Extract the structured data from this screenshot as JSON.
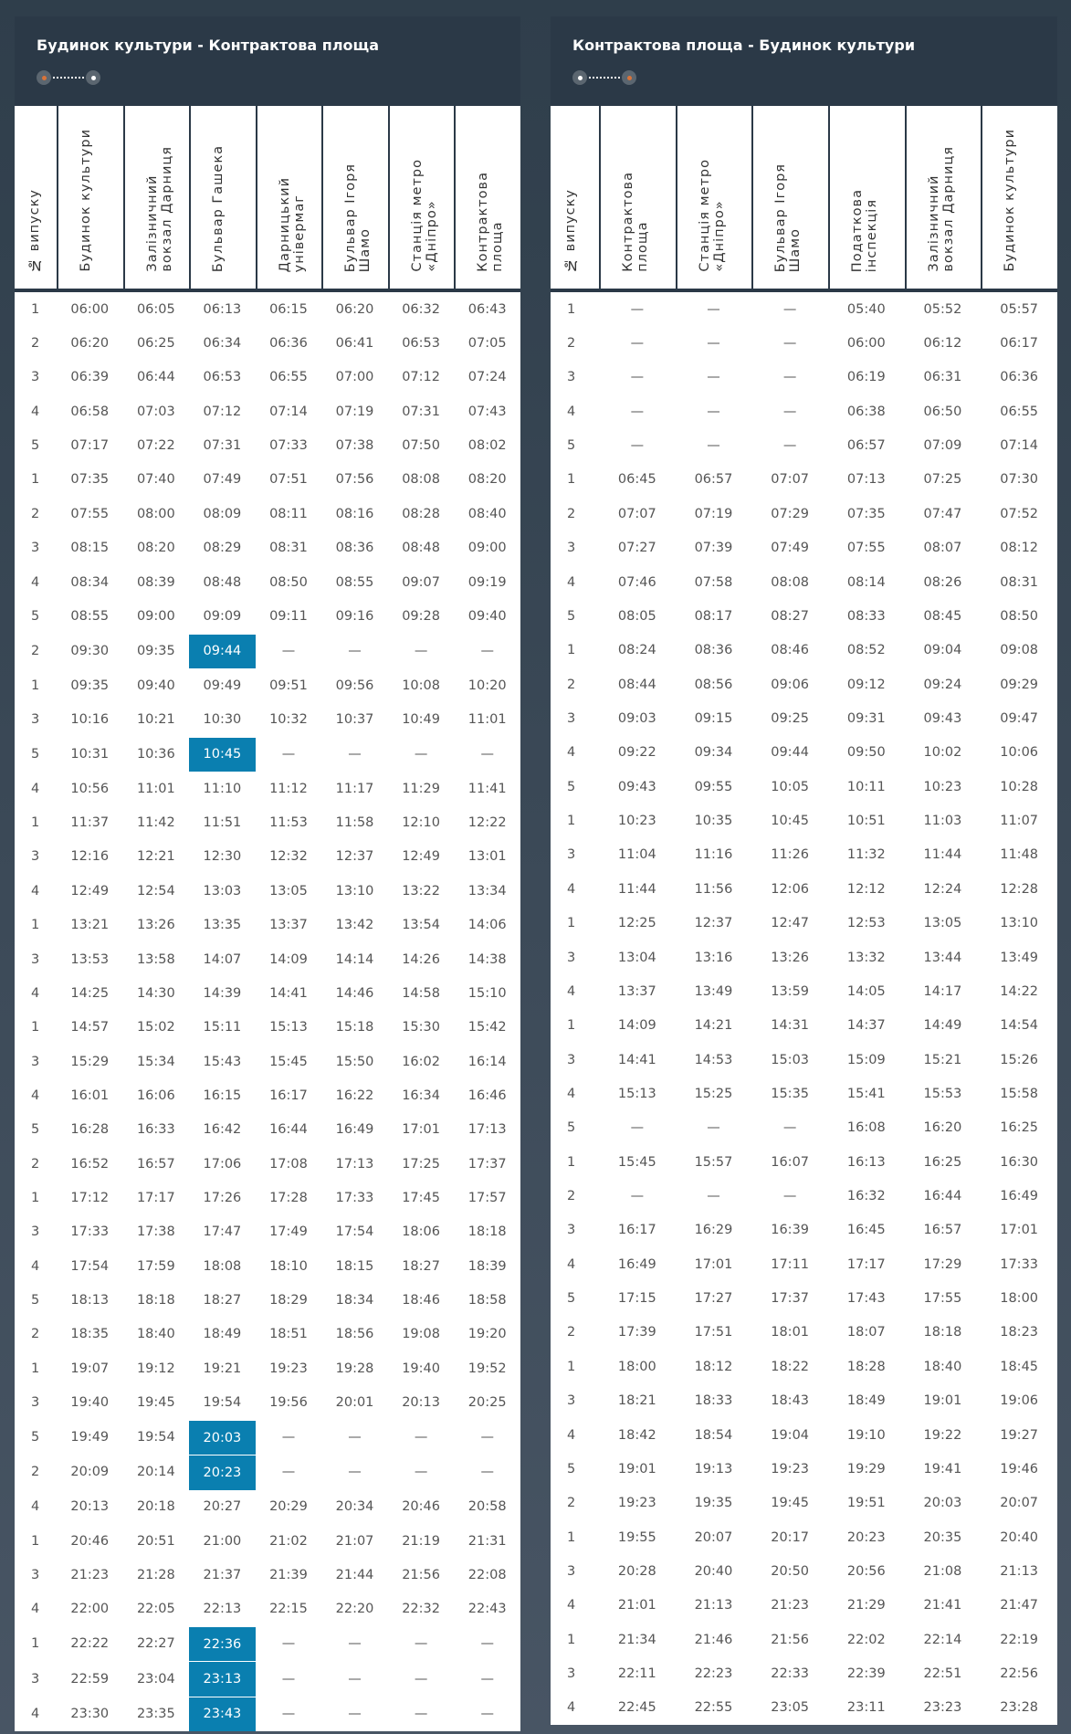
{
  "colors": {
    "highlight": "#0a7fb0",
    "panel": "#2b3947",
    "start_dot": "#d9743a"
  },
  "tables": [
    {
      "title": "Будинок культури - Контрактова площа",
      "headers": [
        "№ випуску",
        "Будинок культури",
        "Залізничний\nвокзал Дарниця",
        "Бульвар Гашека",
        "Дарницький\nунівермаг",
        "Бульвар Ігоря\nШамо",
        "Станція метро\n«Дніпро»",
        "Контрактова\nплоща"
      ],
      "rows": [
        [
          "1",
          "06:00",
          "06:05",
          "06:13",
          "06:15",
          "06:20",
          "06:32",
          "06:43"
        ],
        [
          "2",
          "06:20",
          "06:25",
          "06:34",
          "06:36",
          "06:41",
          "06:53",
          "07:05"
        ],
        [
          "3",
          "06:39",
          "06:44",
          "06:53",
          "06:55",
          "07:00",
          "07:12",
          "07:24"
        ],
        [
          "4",
          "06:58",
          "07:03",
          "07:12",
          "07:14",
          "07:19",
          "07:31",
          "07:43"
        ],
        [
          "5",
          "07:17",
          "07:22",
          "07:31",
          "07:33",
          "07:38",
          "07:50",
          "08:02"
        ],
        [
          "1",
          "07:35",
          "07:40",
          "07:49",
          "07:51",
          "07:56",
          "08:08",
          "08:20"
        ],
        [
          "2",
          "07:55",
          "08:00",
          "08:09",
          "08:11",
          "08:16",
          "08:28",
          "08:40"
        ],
        [
          "3",
          "08:15",
          "08:20",
          "08:29",
          "08:31",
          "08:36",
          "08:48",
          "09:00"
        ],
        [
          "4",
          "08:34",
          "08:39",
          "08:48",
          "08:50",
          "08:55",
          "09:07",
          "09:19"
        ],
        [
          "5",
          "08:55",
          "09:00",
          "09:09",
          "09:11",
          "09:16",
          "09:28",
          "09:40"
        ],
        [
          "2",
          "09:30",
          "09:35",
          "09:44",
          "—",
          "—",
          "—",
          "—"
        ],
        [
          "1",
          "09:35",
          "09:40",
          "09:49",
          "09:51",
          "09:56",
          "10:08",
          "10:20"
        ],
        [
          "3",
          "10:16",
          "10:21",
          "10:30",
          "10:32",
          "10:37",
          "10:49",
          "11:01"
        ],
        [
          "5",
          "10:31",
          "10:36",
          "10:45",
          "—",
          "—",
          "—",
          "—"
        ],
        [
          "4",
          "10:56",
          "11:01",
          "11:10",
          "11:12",
          "11:17",
          "11:29",
          "11:41"
        ],
        [
          "1",
          "11:37",
          "11:42",
          "11:51",
          "11:53",
          "11:58",
          "12:10",
          "12:22"
        ],
        [
          "3",
          "12:16",
          "12:21",
          "12:30",
          "12:32",
          "12:37",
          "12:49",
          "13:01"
        ],
        [
          "4",
          "12:49",
          "12:54",
          "13:03",
          "13:05",
          "13:10",
          "13:22",
          "13:34"
        ],
        [
          "1",
          "13:21",
          "13:26",
          "13:35",
          "13:37",
          "13:42",
          "13:54",
          "14:06"
        ],
        [
          "3",
          "13:53",
          "13:58",
          "14:07",
          "14:09",
          "14:14",
          "14:26",
          "14:38"
        ],
        [
          "4",
          "14:25",
          "14:30",
          "14:39",
          "14:41",
          "14:46",
          "14:58",
          "15:10"
        ],
        [
          "1",
          "14:57",
          "15:02",
          "15:11",
          "15:13",
          "15:18",
          "15:30",
          "15:42"
        ],
        [
          "3",
          "15:29",
          "15:34",
          "15:43",
          "15:45",
          "15:50",
          "16:02",
          "16:14"
        ],
        [
          "4",
          "16:01",
          "16:06",
          "16:15",
          "16:17",
          "16:22",
          "16:34",
          "16:46"
        ],
        [
          "5",
          "16:28",
          "16:33",
          "16:42",
          "16:44",
          "16:49",
          "17:01",
          "17:13"
        ],
        [
          "2",
          "16:52",
          "16:57",
          "17:06",
          "17:08",
          "17:13",
          "17:25",
          "17:37"
        ],
        [
          "1",
          "17:12",
          "17:17",
          "17:26",
          "17:28",
          "17:33",
          "17:45",
          "17:57"
        ],
        [
          "3",
          "17:33",
          "17:38",
          "17:47",
          "17:49",
          "17:54",
          "18:06",
          "18:18"
        ],
        [
          "4",
          "17:54",
          "17:59",
          "18:08",
          "18:10",
          "18:15",
          "18:27",
          "18:39"
        ],
        [
          "5",
          "18:13",
          "18:18",
          "18:27",
          "18:29",
          "18:34",
          "18:46",
          "18:58"
        ],
        [
          "2",
          "18:35",
          "18:40",
          "18:49",
          "18:51",
          "18:56",
          "19:08",
          "19:20"
        ],
        [
          "1",
          "19:07",
          "19:12",
          "19:21",
          "19:23",
          "19:28",
          "19:40",
          "19:52"
        ],
        [
          "3",
          "19:40",
          "19:45",
          "19:54",
          "19:56",
          "20:01",
          "20:13",
          "20:25"
        ],
        [
          "5",
          "19:49",
          "19:54",
          "20:03",
          "—",
          "—",
          "—",
          "—"
        ],
        [
          "2",
          "20:09",
          "20:14",
          "20:23",
          "—",
          "—",
          "—",
          "—"
        ],
        [
          "4",
          "20:13",
          "20:18",
          "20:27",
          "20:29",
          "20:34",
          "20:46",
          "20:58"
        ],
        [
          "1",
          "20:46",
          "20:51",
          "21:00",
          "21:02",
          "21:07",
          "21:19",
          "21:31"
        ],
        [
          "3",
          "21:23",
          "21:28",
          "21:37",
          "21:39",
          "21:44",
          "21:56",
          "22:08"
        ],
        [
          "4",
          "22:00",
          "22:05",
          "22:13",
          "22:15",
          "22:20",
          "22:32",
          "22:43"
        ],
        [
          "1",
          "22:22",
          "22:27",
          "22:36",
          "—",
          "—",
          "—",
          "—"
        ],
        [
          "3",
          "22:59",
          "23:04",
          "23:13",
          "—",
          "—",
          "—",
          "—"
        ],
        [
          "4",
          "23:30",
          "23:35",
          "23:43",
          "—",
          "—",
          "—",
          "—"
        ]
      ],
      "highlighted": [
        [
          10,
          3
        ],
        [
          13,
          3
        ],
        [
          33,
          3
        ],
        [
          34,
          3
        ],
        [
          39,
          3
        ],
        [
          40,
          3
        ],
        [
          41,
          3
        ]
      ]
    },
    {
      "title": "Контрактова площа - Будинок культури",
      "headers": [
        "№ випуску",
        "Контрактова\nплоща",
        "Станція метро\n«Дніпро»",
        "Бульвар Ігоря\nШамо",
        "Податкова\nінспекція",
        "Залізничний\nвокзал Дарниця",
        "Будинок культури"
      ],
      "rows": [
        [
          "1",
          "—",
          "—",
          "—",
          "05:40",
          "05:52",
          "05:57"
        ],
        [
          "2",
          "—",
          "—",
          "—",
          "06:00",
          "06:12",
          "06:17"
        ],
        [
          "3",
          "—",
          "—",
          "—",
          "06:19",
          "06:31",
          "06:36"
        ],
        [
          "4",
          "—",
          "—",
          "—",
          "06:38",
          "06:50",
          "06:55"
        ],
        [
          "5",
          "—",
          "—",
          "—",
          "06:57",
          "07:09",
          "07:14"
        ],
        [
          "1",
          "06:45",
          "06:57",
          "07:07",
          "07:13",
          "07:25",
          "07:30"
        ],
        [
          "2",
          "07:07",
          "07:19",
          "07:29",
          "07:35",
          "07:47",
          "07:52"
        ],
        [
          "3",
          "07:27",
          "07:39",
          "07:49",
          "07:55",
          "08:07",
          "08:12"
        ],
        [
          "4",
          "07:46",
          "07:58",
          "08:08",
          "08:14",
          "08:26",
          "08:31"
        ],
        [
          "5",
          "08:05",
          "08:17",
          "08:27",
          "08:33",
          "08:45",
          "08:50"
        ],
        [
          "1",
          "08:24",
          "08:36",
          "08:46",
          "08:52",
          "09:04",
          "09:08"
        ],
        [
          "2",
          "08:44",
          "08:56",
          "09:06",
          "09:12",
          "09:24",
          "09:29"
        ],
        [
          "3",
          "09:03",
          "09:15",
          "09:25",
          "09:31",
          "09:43",
          "09:47"
        ],
        [
          "4",
          "09:22",
          "09:34",
          "09:44",
          "09:50",
          "10:02",
          "10:06"
        ],
        [
          "5",
          "09:43",
          "09:55",
          "10:05",
          "10:11",
          "10:23",
          "10:28"
        ],
        [
          "1",
          "10:23",
          "10:35",
          "10:45",
          "10:51",
          "11:03",
          "11:07"
        ],
        [
          "3",
          "11:04",
          "11:16",
          "11:26",
          "11:32",
          "11:44",
          "11:48"
        ],
        [
          "4",
          "11:44",
          "11:56",
          "12:06",
          "12:12",
          "12:24",
          "12:28"
        ],
        [
          "1",
          "12:25",
          "12:37",
          "12:47",
          "12:53",
          "13:05",
          "13:10"
        ],
        [
          "3",
          "13:04",
          "13:16",
          "13:26",
          "13:32",
          "13:44",
          "13:49"
        ],
        [
          "4",
          "13:37",
          "13:49",
          "13:59",
          "14:05",
          "14:17",
          "14:22"
        ],
        [
          "1",
          "14:09",
          "14:21",
          "14:31",
          "14:37",
          "14:49",
          "14:54"
        ],
        [
          "3",
          "14:41",
          "14:53",
          "15:03",
          "15:09",
          "15:21",
          "15:26"
        ],
        [
          "4",
          "15:13",
          "15:25",
          "15:35",
          "15:41",
          "15:53",
          "15:58"
        ],
        [
          "5",
          "—",
          "—",
          "—",
          "16:08",
          "16:20",
          "16:25"
        ],
        [
          "1",
          "15:45",
          "15:57",
          "16:07",
          "16:13",
          "16:25",
          "16:30"
        ],
        [
          "2",
          "—",
          "—",
          "—",
          "16:32",
          "16:44",
          "16:49"
        ],
        [
          "3",
          "16:17",
          "16:29",
          "16:39",
          "16:45",
          "16:57",
          "17:01"
        ],
        [
          "4",
          "16:49",
          "17:01",
          "17:11",
          "17:17",
          "17:29",
          "17:33"
        ],
        [
          "5",
          "17:15",
          "17:27",
          "17:37",
          "17:43",
          "17:55",
          "18:00"
        ],
        [
          "2",
          "17:39",
          "17:51",
          "18:01",
          "18:07",
          "18:18",
          "18:23"
        ],
        [
          "1",
          "18:00",
          "18:12",
          "18:22",
          "18:28",
          "18:40",
          "18:45"
        ],
        [
          "3",
          "18:21",
          "18:33",
          "18:43",
          "18:49",
          "19:01",
          "19:06"
        ],
        [
          "4",
          "18:42",
          "18:54",
          "19:04",
          "19:10",
          "19:22",
          "19:27"
        ],
        [
          "5",
          "19:01",
          "19:13",
          "19:23",
          "19:29",
          "19:41",
          "19:46"
        ],
        [
          "2",
          "19:23",
          "19:35",
          "19:45",
          "19:51",
          "20:03",
          "20:07"
        ],
        [
          "1",
          "19:55",
          "20:07",
          "20:17",
          "20:23",
          "20:35",
          "20:40"
        ],
        [
          "3",
          "20:28",
          "20:40",
          "20:50",
          "20:56",
          "21:08",
          "21:13"
        ],
        [
          "4",
          "21:01",
          "21:13",
          "21:23",
          "21:29",
          "21:41",
          "21:47"
        ],
        [
          "1",
          "21:34",
          "21:46",
          "21:56",
          "22:02",
          "22:14",
          "22:19"
        ],
        [
          "3",
          "22:11",
          "22:23",
          "22:33",
          "22:39",
          "22:51",
          "22:56"
        ],
        [
          "4",
          "22:45",
          "22:55",
          "23:05",
          "23:11",
          "23:23",
          "23:28"
        ]
      ],
      "highlighted": []
    }
  ]
}
